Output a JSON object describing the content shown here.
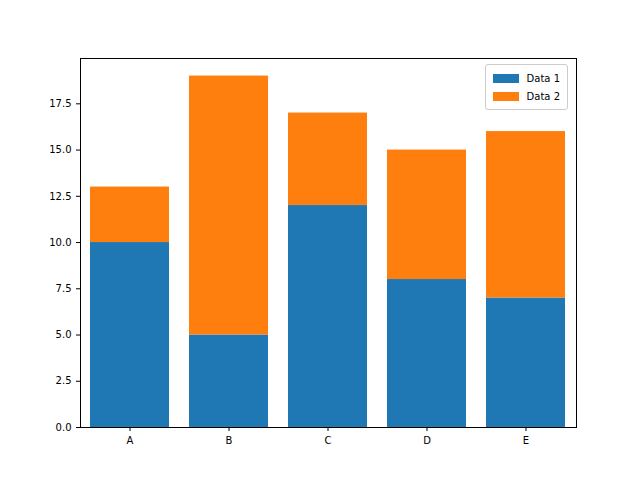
{
  "chart_data": {
    "type": "bar",
    "stacked": true,
    "categories": [
      "A",
      "B",
      "C",
      "D",
      "E"
    ],
    "series": [
      {
        "name": "Data 1",
        "color": "#1f77b4",
        "values": [
          10,
          5,
          12,
          8,
          7
        ]
      },
      {
        "name": "Data 2",
        "color": "#ff7f0e",
        "values": [
          3,
          14,
          5,
          7,
          9
        ]
      }
    ],
    "ylim": [
      0,
      19.95
    ],
    "yticks": [
      {
        "value": 0,
        "label": "0.0"
      },
      2.5,
      {
        "value": 5,
        "label": "5.0"
      },
      7.5,
      {
        "value": 10,
        "label": "10.0"
      },
      12.5,
      {
        "value": 15,
        "label": "15.0"
      },
      17.5
    ],
    "legend": "upper right",
    "grid": false
  }
}
